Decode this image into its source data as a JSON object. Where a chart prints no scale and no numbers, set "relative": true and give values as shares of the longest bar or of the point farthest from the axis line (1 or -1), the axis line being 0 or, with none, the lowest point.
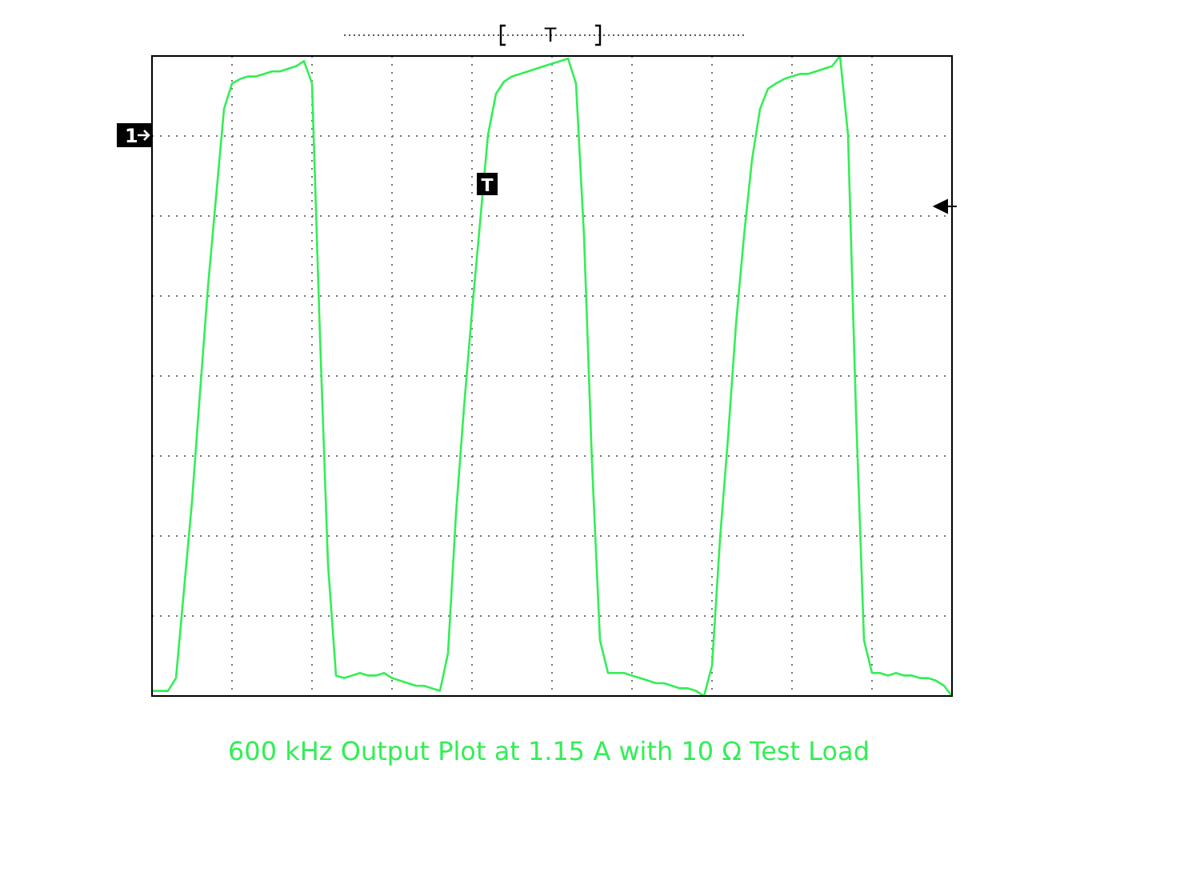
{
  "chart_data": {
    "type": "line",
    "title": "600 kHz Output Plot at 1.15 A with 10 Ω Test Load",
    "relative": true,
    "grid": true,
    "marker": "none",
    "line_style": "solid",
    "annotations": [
      "1",
      "T",
      "T"
    ],
    "categories": [
      null,
      null,
      null,
      null,
      null,
      null,
      null,
      null,
      null,
      null,
      null,
      null,
      null,
      null,
      null,
      null,
      null,
      null,
      null,
      null,
      null,
      null,
      null,
      null,
      null,
      null,
      null,
      null,
      null,
      null,
      null,
      null,
      null,
      null,
      null,
      null,
      null,
      null,
      null,
      null,
      null,
      null,
      null,
      null,
      null,
      null,
      null,
      null,
      null,
      null,
      null,
      null,
      null,
      null,
      null,
      null,
      null,
      null,
      null,
      null,
      null,
      null,
      null,
      null,
      null,
      null,
      null,
      null,
      null,
      null,
      null,
      null,
      null,
      null,
      null,
      null,
      null,
      null,
      null,
      null,
      null,
      null,
      null,
      null,
      null,
      null,
      null,
      null,
      null,
      null,
      null,
      null,
      null,
      null,
      null,
      null,
      null,
      null,
      null,
      null,
      null
    ],
    "series": [
      {
        "color": "#33ee55",
        "values": [
          0.008,
          0.008,
          0.008,
          0.028,
          0.166,
          0.304,
          0.474,
          0.64,
          0.779,
          0.917,
          0.957,
          0.964,
          0.968,
          0.968,
          0.972,
          0.976,
          0.976,
          0.98,
          0.984,
          0.992,
          0.957,
          0.561,
          0.206,
          0.032,
          0.028,
          0.032,
          0.036,
          0.032,
          0.032,
          0.036,
          0.028,
          0.024,
          0.02,
          0.016,
          0.016,
          0.012,
          0.008,
          0.067,
          0.285,
          0.451,
          0.601,
          0.739,
          0.877,
          0.941,
          0.96,
          0.968,
          0.972,
          0.976,
          0.98,
          0.984,
          0.988,
          0.992,
          0.996,
          0.957,
          0.719,
          0.364,
          0.087,
          0.036,
          0.036,
          0.036,
          0.032,
          0.028,
          0.024,
          0.02,
          0.02,
          0.016,
          0.012,
          0.012,
          0.008,
          0,
          0.047,
          0.245,
          0.403,
          0.581,
          0.719,
          0.838,
          0.917,
          0.949,
          0.957,
          0.964,
          0.968,
          0.972,
          0.972,
          0.976,
          0.98,
          0.984,
          1,
          0.877,
          0.443,
          0.087,
          0.036,
          0.036,
          0.032,
          0.036,
          0.032,
          0.032,
          0.028,
          0.028,
          0.024,
          0.016,
          0
        ]
      }
    ]
  }
}
